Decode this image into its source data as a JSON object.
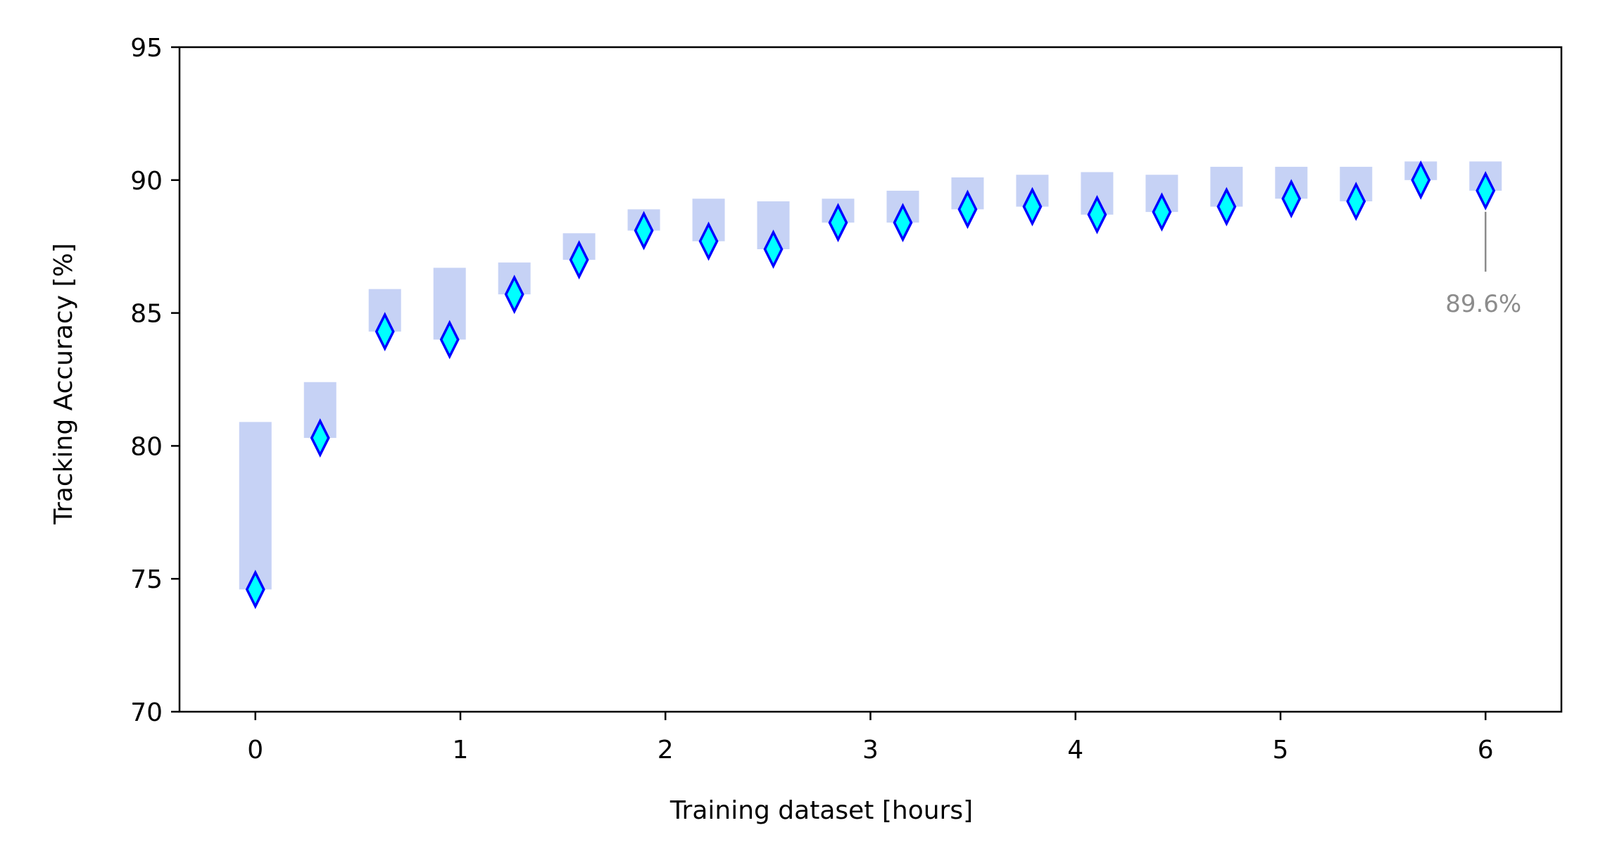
{
  "chart_data": {
    "type": "scatter",
    "title": "",
    "xlabel": "Training dataset [hours]",
    "ylabel": "Tracking Accuracy [%]",
    "xlim": [
      -0.37,
      6.37
    ],
    "ylim": [
      70,
      95
    ],
    "xticks": [
      "0",
      "1",
      "2",
      "3",
      "4",
      "5",
      "6"
    ],
    "yticks": [
      "70",
      "75",
      "80",
      "85",
      "90",
      "95"
    ],
    "grid": false,
    "legend": "none",
    "x": [
      0.0,
      0.3158,
      0.6316,
      0.9474,
      1.2632,
      1.5789,
      1.8947,
      2.2105,
      2.5263,
      2.8421,
      3.1579,
      3.4737,
      3.7895,
      4.1053,
      4.4211,
      4.7368,
      5.0526,
      5.3684,
      5.6842,
      6.0
    ],
    "series": [
      {
        "values": [
          74.6,
          80.3,
          84.3,
          84.0,
          85.7,
          87.0,
          88.1,
          87.7,
          87.4,
          88.4,
          88.4,
          88.9,
          89.0,
          88.7,
          88.8,
          89.0,
          89.3,
          89.2,
          90.0,
          89.6
        ]
      }
    ],
    "bar_tops": [
      80.9,
      82.4,
      85.9,
      86.7,
      86.9,
      88.0,
      88.9,
      89.3,
      89.2,
      89.3,
      89.6,
      90.1,
      90.2,
      90.3,
      90.2,
      90.5,
      90.5,
      90.5,
      90.7,
      90.7
    ],
    "annotation": {
      "text": "89.6%",
      "x": 6.0,
      "y": 89.6
    },
    "colors": {
      "marker_fill": "#00ffff",
      "marker_edge": "#0000ff",
      "band": "#c6d2f5",
      "annotation": "#8c8c8c",
      "axes": "#000000"
    }
  }
}
